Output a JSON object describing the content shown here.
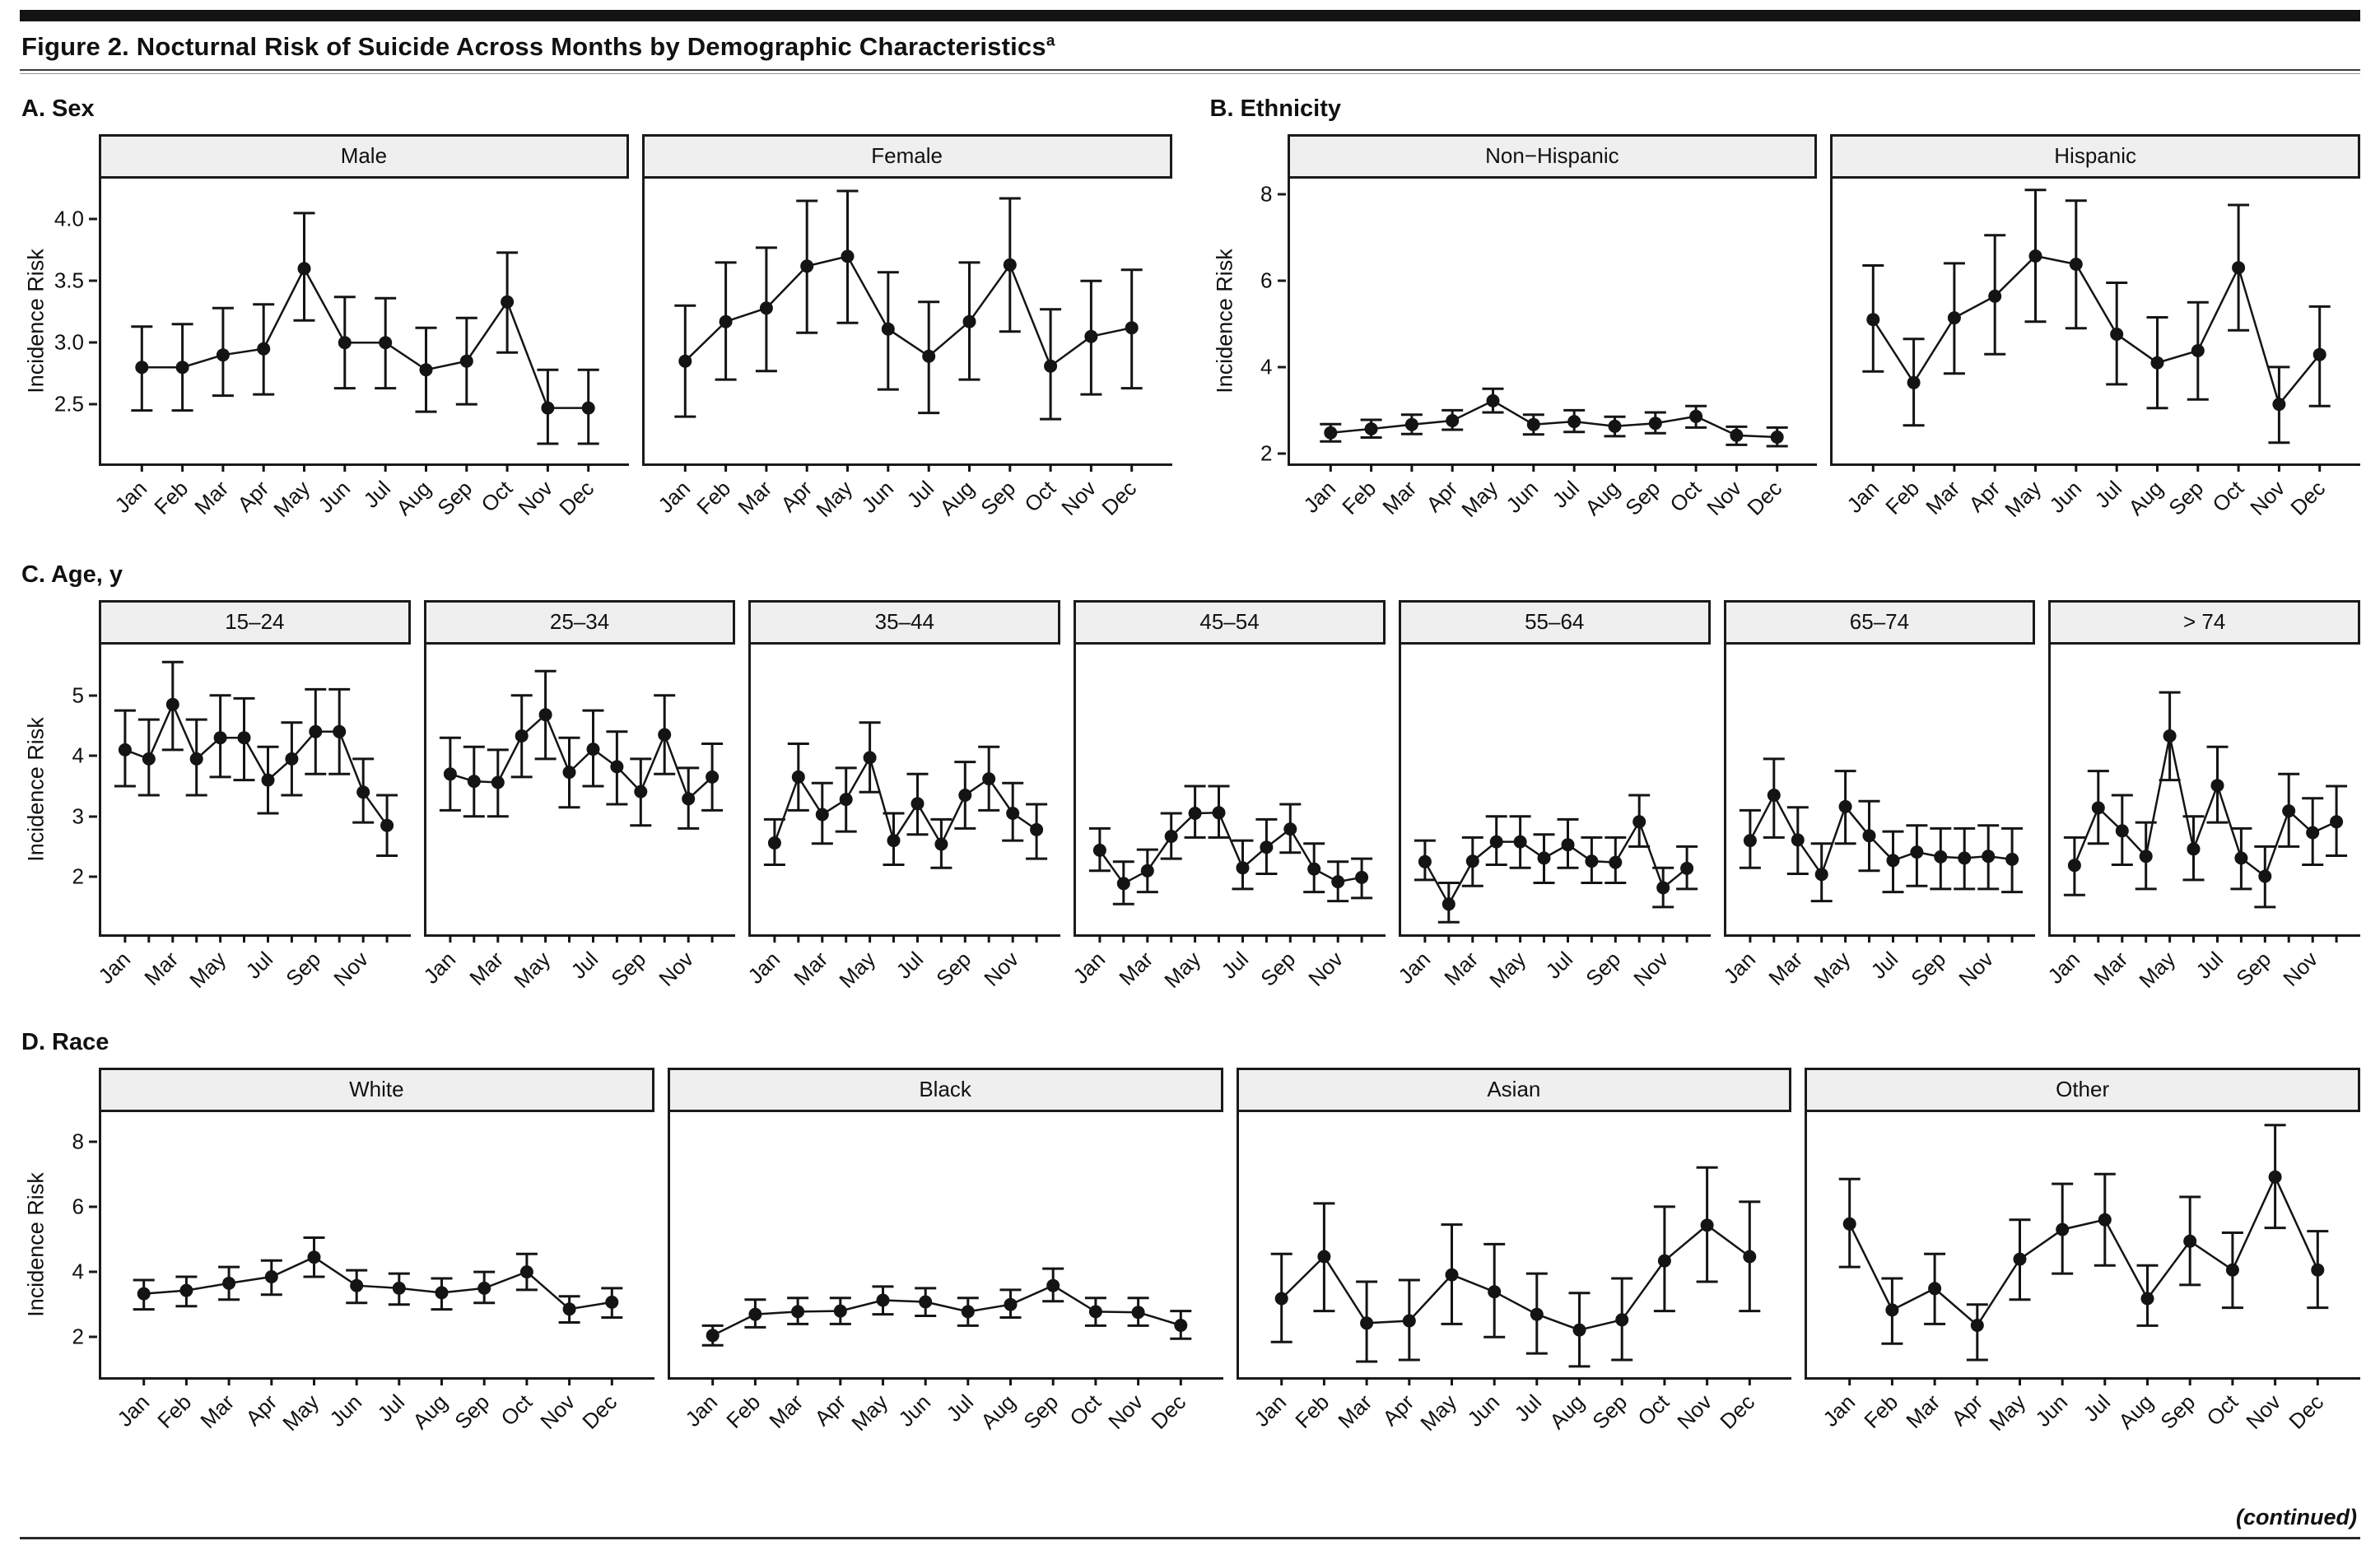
{
  "figure": {
    "title": "Figure 2. Nocturnal Risk of Suicide Across Months by Demographic Characteristics",
    "superscript": "a"
  },
  "footer": {
    "continued": "(continued)"
  },
  "axis": {
    "y_label": "Incidence Risk"
  },
  "months": [
    "Jan",
    "Feb",
    "Mar",
    "Apr",
    "May",
    "Jun",
    "Jul",
    "Aug",
    "Sep",
    "Oct",
    "Nov",
    "Dec"
  ],
  "sections": [
    {
      "label": "A. Sex",
      "y_domain": [
        2.02,
        4.33
      ],
      "y_tick_values": [
        4.0,
        3.5,
        3.0,
        2.5
      ],
      "y_tick_labels": [
        "4.0",
        "3.5",
        "3.0",
        "2.5"
      ],
      "x_label_every": 1,
      "panel_indexes": [
        0,
        1
      ]
    },
    {
      "label": "B. Ethnicity",
      "y_domain": [
        1.77,
        8.36
      ],
      "y_tick_values": [
        8,
        6,
        4,
        2
      ],
      "y_tick_labels": [
        "8",
        "6",
        "4",
        "2"
      ],
      "x_label_every": 1,
      "panel_indexes": [
        2,
        3
      ]
    },
    {
      "label": "C. Age, y",
      "y_domain": [
        1.05,
        5.84
      ],
      "y_tick_values": [
        5,
        4,
        3,
        2
      ],
      "y_tick_labels": [
        "5",
        "4",
        "3",
        "2"
      ],
      "x_label_every": 2,
      "panel_indexes": [
        4,
        5,
        6,
        7,
        8,
        9,
        10
      ]
    },
    {
      "label": "D. Race",
      "y_domain": [
        0.77,
        8.9
      ],
      "y_tick_values": [
        8,
        6,
        4,
        2
      ],
      "y_tick_labels": [
        "8",
        "6",
        "4",
        "2"
      ],
      "x_label_every": 1,
      "panel_indexes": [
        11,
        12,
        13,
        14
      ]
    }
  ],
  "chart_data": [
    {
      "type": "line",
      "group": "A. Sex",
      "title": "Male",
      "ylabel": "Incidence Risk",
      "ylim": [
        2.02,
        4.33
      ],
      "yticks": [
        2.5,
        3.0,
        3.5,
        4.0
      ],
      "values": [
        2.8,
        2.8,
        2.9,
        2.95,
        3.6,
        3.0,
        3.0,
        2.78,
        2.85,
        3.33,
        2.47,
        2.47
      ],
      "ci_low": [
        2.45,
        2.45,
        2.57,
        2.58,
        3.18,
        2.63,
        2.63,
        2.44,
        2.5,
        2.92,
        2.18,
        2.18
      ],
      "ci_high": [
        3.13,
        3.15,
        3.28,
        3.31,
        4.05,
        3.37,
        3.36,
        3.12,
        3.2,
        3.73,
        2.78,
        2.78
      ]
    },
    {
      "type": "line",
      "group": "A. Sex",
      "title": "Female",
      "ylabel": "Incidence Risk",
      "ylim": [
        2.02,
        4.33
      ],
      "yticks": [
        2.5,
        3.0,
        3.5,
        4.0
      ],
      "values": [
        2.85,
        3.17,
        3.28,
        3.62,
        3.7,
        3.11,
        2.89,
        3.17,
        3.63,
        2.81,
        3.05,
        3.12
      ],
      "ci_low": [
        2.4,
        2.7,
        2.77,
        3.08,
        3.16,
        2.62,
        2.43,
        2.7,
        3.09,
        2.38,
        2.58,
        2.63
      ],
      "ci_high": [
        3.3,
        3.65,
        3.77,
        4.15,
        4.23,
        3.57,
        3.33,
        3.65,
        4.17,
        3.27,
        3.5,
        3.59
      ]
    },
    {
      "type": "line",
      "group": "B. Ethnicity",
      "title": "Non−Hispanic",
      "ylabel": "Incidence Risk",
      "ylim": [
        1.77,
        8.36
      ],
      "yticks": [
        2,
        4,
        6,
        8
      ],
      "values": [
        2.48,
        2.57,
        2.67,
        2.76,
        3.22,
        2.67,
        2.74,
        2.63,
        2.7,
        2.86,
        2.42,
        2.38
      ],
      "ci_low": [
        2.28,
        2.37,
        2.45,
        2.55,
        2.95,
        2.44,
        2.5,
        2.4,
        2.47,
        2.6,
        2.2,
        2.17
      ],
      "ci_high": [
        2.68,
        2.78,
        2.9,
        3.0,
        3.5,
        2.9,
        3.0,
        2.85,
        2.95,
        3.1,
        2.62,
        2.6
      ]
    },
    {
      "type": "line",
      "group": "B. Ethnicity",
      "title": "Hispanic",
      "ylabel": "Incidence Risk",
      "ylim": [
        1.77,
        8.36
      ],
      "yticks": [
        2,
        4,
        6,
        8
      ],
      "values": [
        5.1,
        3.64,
        5.14,
        5.64,
        6.57,
        6.38,
        4.76,
        4.1,
        4.38,
        6.3,
        3.14,
        4.29
      ],
      "ci_low": [
        3.9,
        2.65,
        3.85,
        4.3,
        5.05,
        4.9,
        3.6,
        3.05,
        3.25,
        4.85,
        2.25,
        3.1
      ],
      "ci_high": [
        6.35,
        4.65,
        6.4,
        7.05,
        8.1,
        7.85,
        5.95,
        5.15,
        5.5,
        7.75,
        4.0,
        5.4
      ]
    },
    {
      "type": "line",
      "group": "C. Age, y",
      "title": "15–24",
      "ylabel": "Incidence Risk",
      "ylim": [
        1.05,
        5.84
      ],
      "yticks": [
        2,
        3,
        4,
        5
      ],
      "values": [
        4.1,
        3.95,
        4.85,
        3.95,
        4.3,
        4.3,
        3.6,
        3.95,
        4.4,
        4.4,
        3.4,
        2.85
      ],
      "ci_low": [
        3.5,
        3.35,
        4.1,
        3.35,
        3.65,
        3.6,
        3.05,
        3.35,
        3.7,
        3.7,
        2.9,
        2.35
      ],
      "ci_high": [
        4.75,
        4.6,
        5.55,
        4.6,
        5.0,
        4.95,
        4.15,
        4.55,
        5.1,
        5.1,
        3.95,
        3.35
      ]
    },
    {
      "type": "line",
      "group": "C. Age, y",
      "title": "25–34",
      "ylabel": "Incidence Risk",
      "ylim": [
        1.05,
        5.84
      ],
      "yticks": [
        2,
        3,
        4,
        5
      ],
      "values": [
        3.7,
        3.58,
        3.56,
        4.33,
        4.68,
        3.73,
        4.11,
        3.82,
        3.41,
        4.35,
        3.29,
        3.65
      ],
      "ci_low": [
        3.1,
        3.0,
        3.0,
        3.65,
        3.95,
        3.15,
        3.5,
        3.2,
        2.85,
        3.7,
        2.8,
        3.1
      ],
      "ci_high": [
        4.3,
        4.15,
        4.1,
        5.0,
        5.4,
        4.3,
        4.75,
        4.4,
        3.95,
        5.0,
        3.8,
        4.2
      ]
    },
    {
      "type": "line",
      "group": "C. Age, y",
      "title": "35–44",
      "ylabel": "Incidence Risk",
      "ylim": [
        1.05,
        5.84
      ],
      "yticks": [
        2,
        3,
        4,
        5
      ],
      "values": [
        2.56,
        3.65,
        3.03,
        3.28,
        3.97,
        2.6,
        3.21,
        2.54,
        3.35,
        3.62,
        3.05,
        2.78
      ],
      "ci_low": [
        2.2,
        3.1,
        2.55,
        2.75,
        3.4,
        2.2,
        2.7,
        2.15,
        2.8,
        3.1,
        2.6,
        2.3
      ],
      "ci_high": [
        2.95,
        4.2,
        3.55,
        3.8,
        4.55,
        3.05,
        3.7,
        2.95,
        3.9,
        4.15,
        3.55,
        3.2
      ]
    },
    {
      "type": "line",
      "group": "C. Age, y",
      "title": "45–54",
      "ylabel": "Incidence Risk",
      "ylim": [
        1.05,
        5.84
      ],
      "yticks": [
        2,
        3,
        4,
        5
      ],
      "values": [
        2.44,
        1.89,
        2.1,
        2.67,
        3.05,
        3.06,
        2.15,
        2.49,
        2.79,
        2.13,
        1.92,
        1.99
      ],
      "ci_low": [
        2.1,
        1.55,
        1.75,
        2.3,
        2.65,
        2.65,
        1.8,
        2.05,
        2.4,
        1.75,
        1.6,
        1.65
      ],
      "ci_high": [
        2.8,
        2.25,
        2.45,
        3.05,
        3.5,
        3.5,
        2.6,
        2.95,
        3.2,
        2.55,
        2.25,
        2.3
      ]
    },
    {
      "type": "line",
      "group": "C. Age, y",
      "title": "55–64",
      "ylabel": "Incidence Risk",
      "ylim": [
        1.05,
        5.84
      ],
      "yticks": [
        2,
        3,
        4,
        5
      ],
      "values": [
        2.25,
        1.55,
        2.26,
        2.58,
        2.58,
        2.31,
        2.53,
        2.26,
        2.24,
        2.91,
        1.82,
        2.14
      ],
      "ci_low": [
        1.95,
        1.25,
        1.85,
        2.2,
        2.15,
        1.9,
        2.15,
        1.9,
        1.9,
        2.5,
        1.5,
        1.8
      ],
      "ci_high": [
        2.6,
        1.9,
        2.65,
        3.0,
        3.0,
        2.7,
        2.95,
        2.65,
        2.65,
        3.35,
        2.15,
        2.5
      ]
    },
    {
      "type": "line",
      "group": "C. Age, y",
      "title": "65–74",
      "ylabel": "Incidence Risk",
      "ylim": [
        1.05,
        5.84
      ],
      "yticks": [
        2,
        3,
        4,
        5
      ],
      "values": [
        2.6,
        3.35,
        2.61,
        2.04,
        3.16,
        2.68,
        2.27,
        2.41,
        2.33,
        2.31,
        2.34,
        2.29
      ],
      "ci_low": [
        2.15,
        2.65,
        2.05,
        1.6,
        2.55,
        2.1,
        1.75,
        1.85,
        1.8,
        1.8,
        1.8,
        1.75
      ],
      "ci_high": [
        3.1,
        3.95,
        3.15,
        2.55,
        3.75,
        3.25,
        2.75,
        2.85,
        2.8,
        2.8,
        2.85,
        2.8
      ]
    },
    {
      "type": "line",
      "group": "C. Age, y",
      "title": "> 74",
      "ylabel": "Incidence Risk",
      "ylim": [
        1.05,
        5.84
      ],
      "yticks": [
        2,
        3,
        4,
        5
      ],
      "values": [
        2.19,
        3.14,
        2.76,
        2.34,
        4.33,
        2.46,
        3.51,
        2.31,
        2.01,
        3.09,
        2.73,
        2.91
      ],
      "ci_low": [
        1.7,
        2.55,
        2.2,
        1.8,
        3.6,
        1.95,
        2.9,
        1.8,
        1.5,
        2.5,
        2.2,
        2.35
      ],
      "ci_high": [
        2.65,
        3.75,
        3.35,
        2.9,
        5.05,
        3.0,
        4.15,
        2.8,
        2.5,
        3.7,
        3.3,
        3.5
      ]
    },
    {
      "type": "line",
      "group": "D. Race",
      "title": "White",
      "ylabel": "Incidence Risk",
      "ylim": [
        0.77,
        8.9
      ],
      "yticks": [
        2,
        4,
        6,
        8
      ],
      "values": [
        3.33,
        3.43,
        3.65,
        3.85,
        4.45,
        3.58,
        3.5,
        3.36,
        3.5,
        4.0,
        2.86,
        3.07
      ],
      "ci_low": [
        2.85,
        2.95,
        3.15,
        3.3,
        3.85,
        3.05,
        3.0,
        2.85,
        3.05,
        3.45,
        2.45,
        2.6
      ],
      "ci_high": [
        3.75,
        3.85,
        4.15,
        4.35,
        5.05,
        4.05,
        3.95,
        3.8,
        4.0,
        4.55,
        3.25,
        3.5
      ]
    },
    {
      "type": "line",
      "group": "D. Race",
      "title": "Black",
      "ylabel": "Incidence Risk",
      "ylim": [
        0.77,
        8.9
      ],
      "yticks": [
        2,
        4,
        6,
        8
      ],
      "values": [
        2.05,
        2.7,
        2.78,
        2.8,
        3.13,
        3.08,
        2.78,
        3.0,
        3.58,
        2.78,
        2.76,
        2.36
      ],
      "ci_low": [
        1.75,
        2.3,
        2.4,
        2.4,
        2.7,
        2.65,
        2.35,
        2.6,
        3.1,
        2.35,
        2.35,
        1.95
      ],
      "ci_high": [
        2.35,
        3.15,
        3.2,
        3.2,
        3.55,
        3.5,
        3.2,
        3.45,
        4.1,
        3.2,
        3.2,
        2.8
      ]
    },
    {
      "type": "line",
      "group": "D. Race",
      "title": "Asian",
      "ylabel": "Incidence Risk",
      "ylim": [
        0.77,
        8.9
      ],
      "yticks": [
        2,
        4,
        6,
        8
      ],
      "values": [
        3.18,
        4.47,
        2.43,
        2.5,
        3.91,
        3.39,
        2.7,
        2.22,
        2.53,
        4.34,
        5.43,
        4.47
      ],
      "ci_low": [
        1.85,
        2.8,
        1.25,
        1.3,
        2.4,
        2.0,
        1.5,
        1.1,
        1.3,
        2.8,
        3.7,
        2.8
      ],
      "ci_high": [
        4.55,
        6.1,
        3.7,
        3.75,
        5.45,
        4.85,
        3.95,
        3.35,
        3.8,
        6.0,
        7.2,
        6.15
      ]
    },
    {
      "type": "line",
      "group": "D. Race",
      "title": "Other",
      "ylabel": "Incidence Risk",
      "ylim": [
        0.77,
        8.9
      ],
      "yticks": [
        2,
        4,
        6,
        8
      ],
      "values": [
        5.47,
        2.83,
        3.49,
        2.36,
        4.39,
        5.3,
        5.6,
        3.18,
        4.94,
        4.06,
        6.91,
        4.06
      ],
      "ci_low": [
        4.15,
        1.8,
        2.4,
        1.3,
        3.15,
        3.95,
        4.2,
        2.35,
        3.6,
        2.9,
        5.35,
        2.9
      ],
      "ci_high": [
        6.85,
        3.8,
        4.55,
        3.0,
        5.6,
        6.7,
        7.0,
        4.2,
        6.3,
        5.2,
        8.5,
        5.25
      ]
    }
  ]
}
